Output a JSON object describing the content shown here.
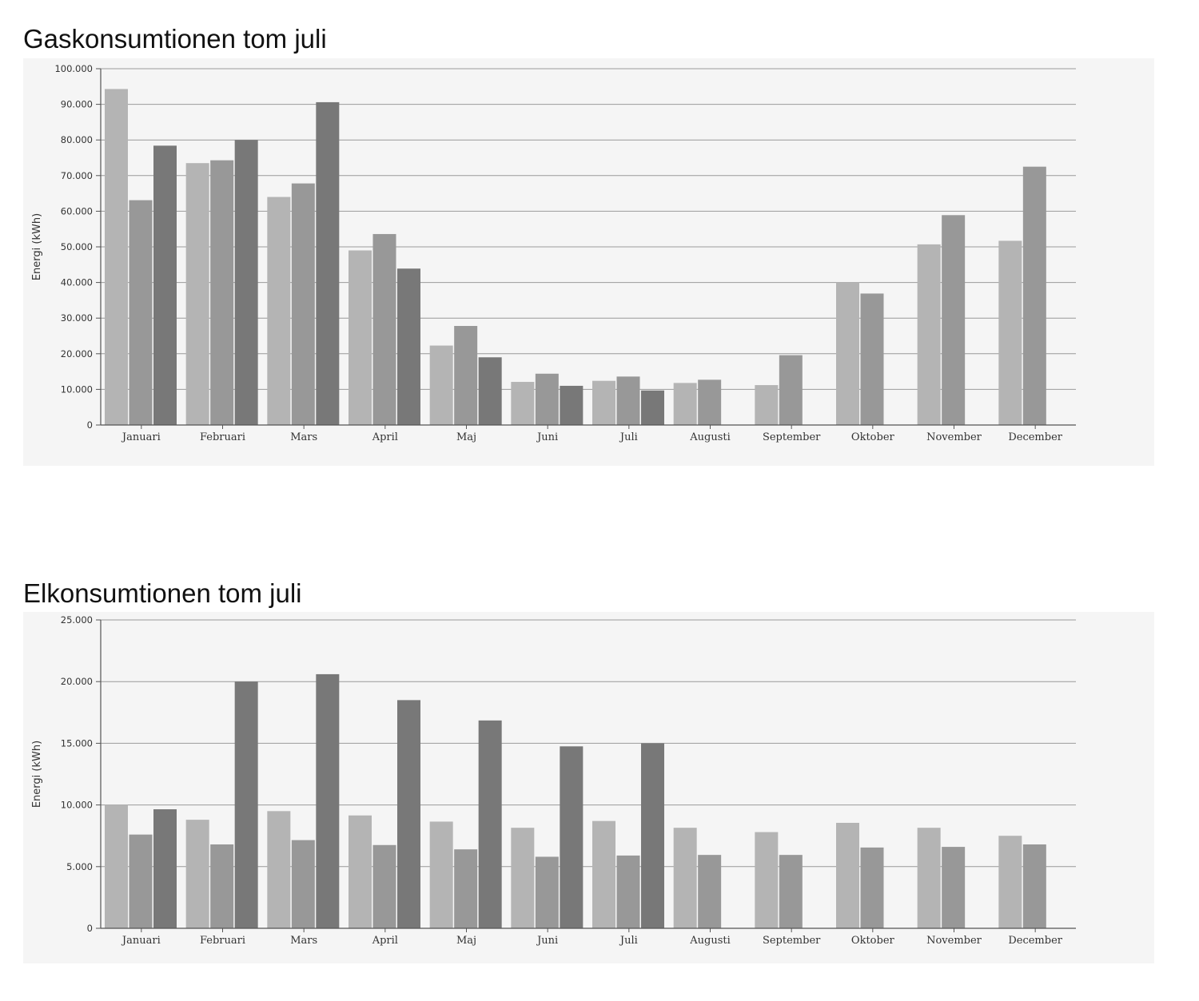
{
  "chart_data": [
    {
      "type": "bar",
      "title": "Gaskonsumtionen tom juli",
      "xlabel": "",
      "ylabel": "Energi (kWh)",
      "ylim": [
        0,
        100000
      ],
      "yticks": [
        "0",
        "10.000",
        "20.000",
        "30.000",
        "40.000",
        "50.000",
        "60.000",
        "70.000",
        "80.000",
        "90.000",
        "100.000"
      ],
      "categories": [
        "Januari",
        "Februari",
        "Mars",
        "April",
        "Maj",
        "Juni",
        "Juli",
        "Augusti",
        "September",
        "Oktober",
        "November",
        "December"
      ],
      "grid": true,
      "legend": "none",
      "series": [
        {
          "color": "#b4b4b4",
          "values": [
            94300,
            73500,
            64000,
            49000,
            22300,
            12100,
            12400,
            11800,
            11200,
            40000,
            50700,
            51700
          ]
        },
        {
          "color": "#989898",
          "values": [
            63100,
            74300,
            67800,
            53600,
            27800,
            14400,
            13600,
            12700,
            19600,
            36900,
            58900,
            72500
          ]
        },
        {
          "color": "#787878",
          "values": [
            78400,
            80000,
            90600,
            43900,
            19000,
            11000,
            9700,
            null,
            null,
            null,
            null,
            null
          ]
        }
      ]
    },
    {
      "type": "bar",
      "title": "Elkonsumtionen tom juli",
      "xlabel": "",
      "ylabel": "Energi (kWh)",
      "ylim": [
        0,
        25000
      ],
      "yticks": [
        "0",
        "5.000",
        "10.000",
        "15.000",
        "20.000",
        "25.000"
      ],
      "categories": [
        "Januari",
        "Februari",
        "Mars",
        "April",
        "Maj",
        "Juni",
        "Juli",
        "Augusti",
        "September",
        "Oktober",
        "November",
        "December"
      ],
      "grid": true,
      "legend": "none",
      "series": [
        {
          "color": "#b4b4b4",
          "values": [
            10000,
            8800,
            9500,
            9150,
            8650,
            8150,
            8700,
            8150,
            7800,
            8550,
            8150,
            7500
          ]
        },
        {
          "color": "#989898",
          "values": [
            7600,
            6800,
            7150,
            6750,
            6400,
            5800,
            5900,
            5950,
            5950,
            6550,
            6600,
            6800
          ]
        },
        {
          "color": "#787878",
          "values": [
            9650,
            20000,
            20600,
            18500,
            16850,
            14750,
            15000,
            null,
            null,
            null,
            null,
            null
          ]
        }
      ]
    }
  ]
}
